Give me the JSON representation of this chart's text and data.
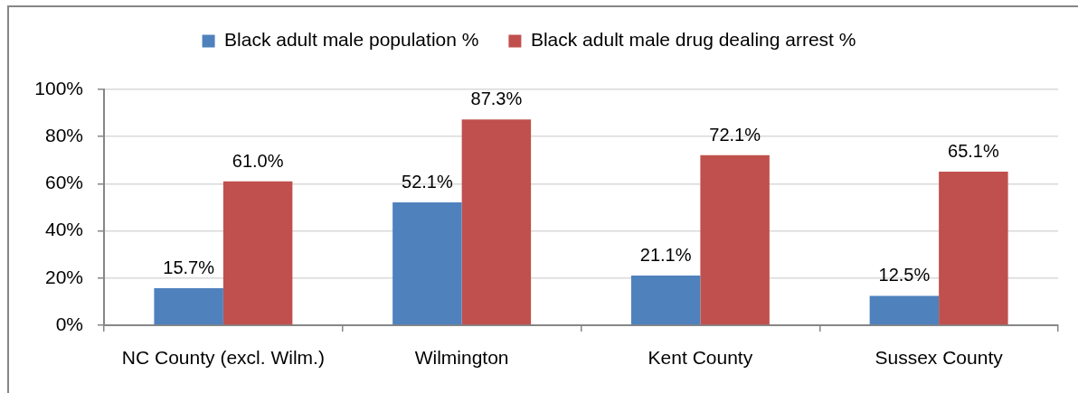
{
  "chart_data": {
    "type": "bar",
    "categories": [
      "NC County (excl. Wilm.)",
      "Wilmington",
      "Kent County",
      "Sussex County"
    ],
    "series": [
      {
        "name": "Black adult male population %",
        "color": "#4f81bd",
        "values": [
          15.7,
          52.1,
          21.1,
          12.5
        ],
        "value_labels": [
          "15.7%",
          "52.1%",
          "21.1%",
          "12.5%"
        ]
      },
      {
        "name": "Black adult male drug dealing arrest %",
        "color": "#c0504d",
        "values": [
          61.0,
          87.3,
          72.1,
          65.1
        ],
        "value_labels": [
          "61.0%",
          "87.3%",
          "72.1%",
          "65.1%"
        ]
      }
    ],
    "ylim": [
      0,
      100
    ],
    "yticks": [
      {
        "value": 0,
        "label": "0%"
      },
      {
        "value": 20,
        "label": "20%"
      },
      {
        "value": 40,
        "label": "40%"
      },
      {
        "value": 60,
        "label": "60%"
      },
      {
        "value": 80,
        "label": "80%"
      },
      {
        "value": 100,
        "label": "100%"
      }
    ],
    "grid": "y",
    "legend": "top"
  }
}
